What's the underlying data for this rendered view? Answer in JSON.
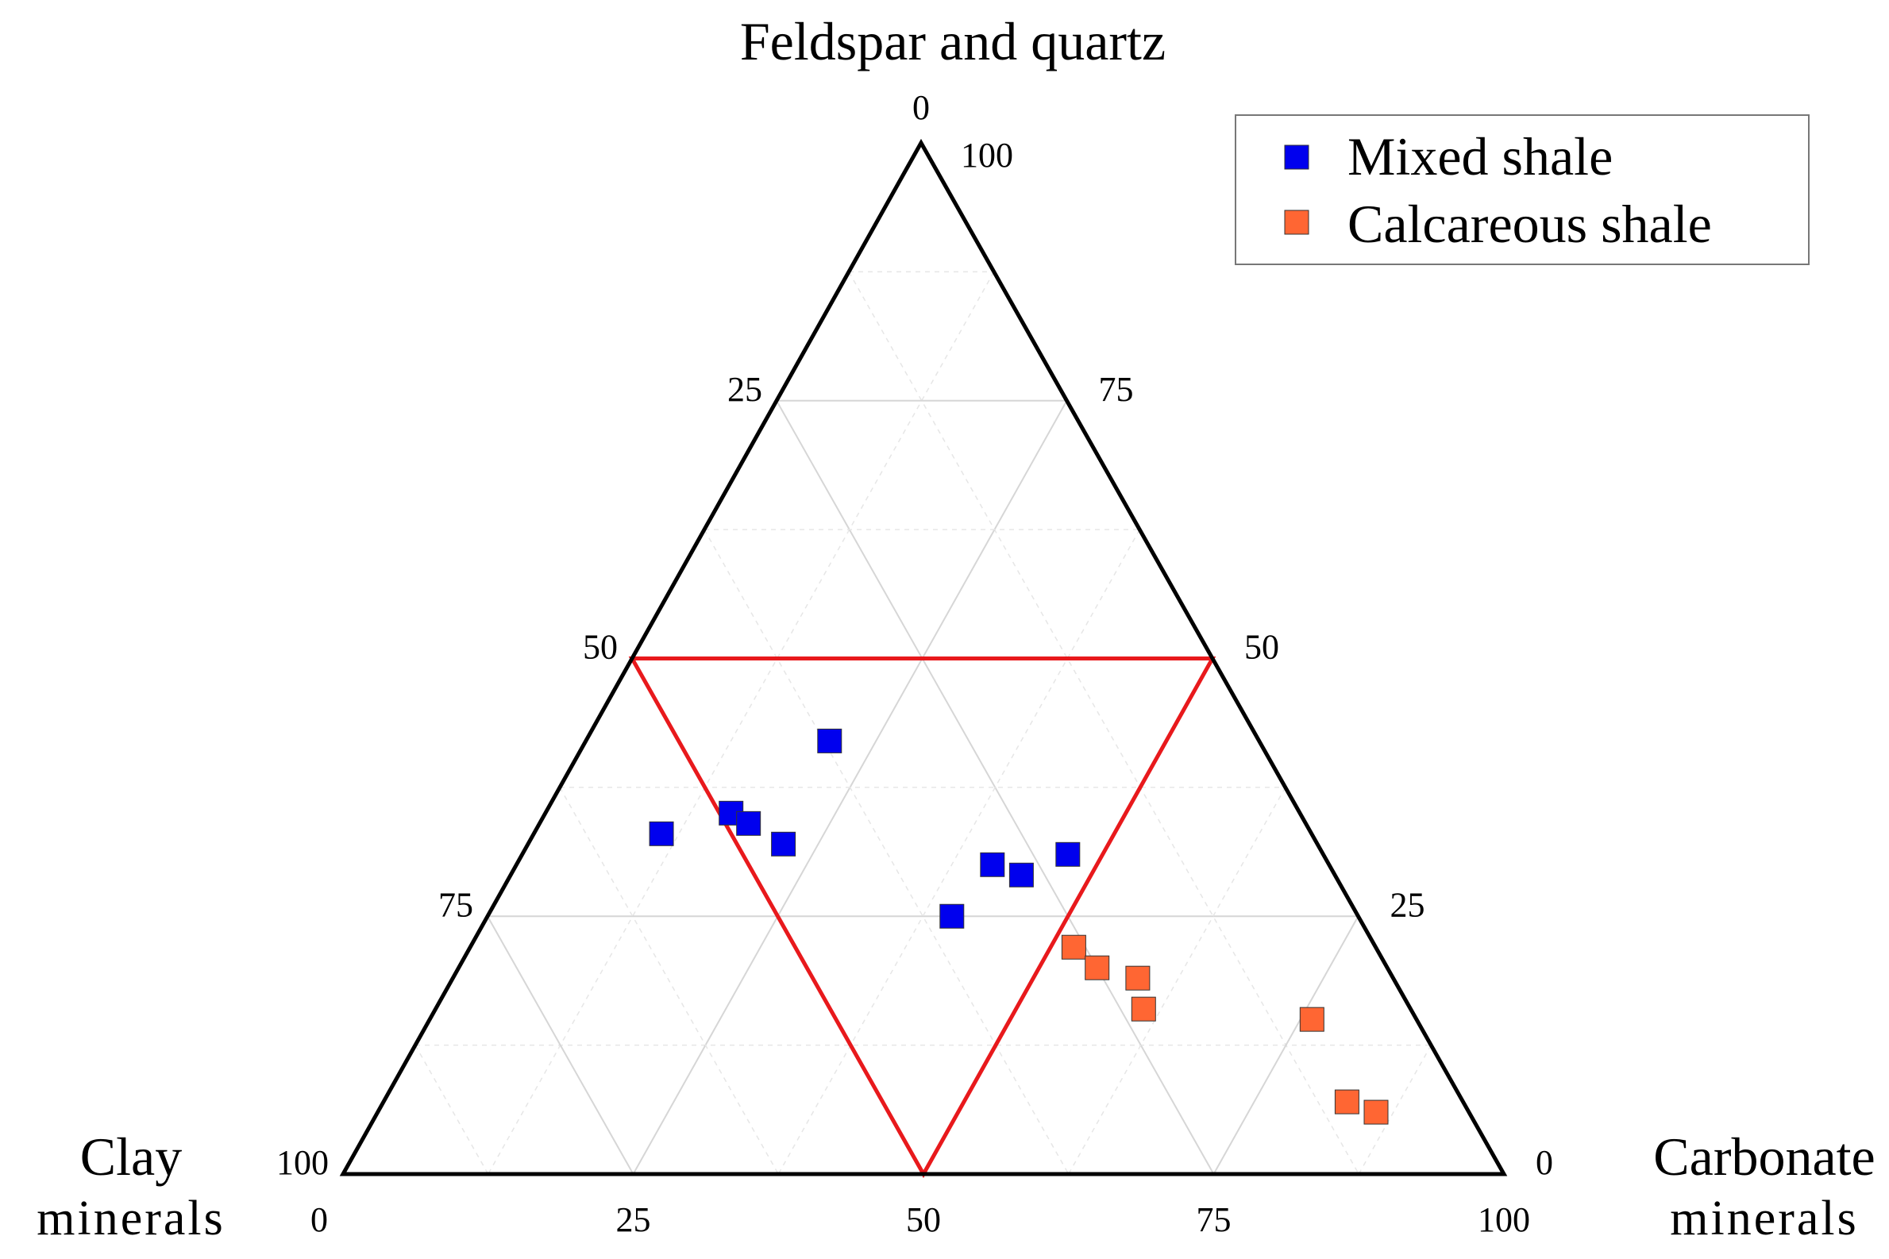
{
  "chart_data": {
    "type": "scatter",
    "subtype": "ternary",
    "axes": {
      "top": {
        "label": "Feldspar and quartz"
      },
      "left": {
        "label_line1": "Clay",
        "label_line2": "minerals"
      },
      "right": {
        "label_line1": "Carbonate",
        "label_line2": "minerals"
      }
    },
    "ticks": {
      "left_edge": [
        "0",
        "25",
        "50",
        "75",
        "100"
      ],
      "right_edge": [
        "100",
        "75",
        "50",
        "25",
        "0"
      ],
      "bottom_edge": [
        "0",
        "25",
        "50",
        "75",
        "100"
      ]
    },
    "grid": "light gray lines every 12.5%",
    "region_triangle": {
      "description": "midpoint triangle (each component <= 50%)",
      "color": "#e8191c",
      "vertices": [
        {
          "quartz_feldspar": 50,
          "clay": 50,
          "carbonate": 0
        },
        {
          "quartz_feldspar": 50,
          "clay": 0,
          "carbonate": 50
        },
        {
          "quartz_feldspar": 0,
          "clay": 50,
          "carbonate": 50
        }
      ]
    },
    "legend": {
      "placement": "top-right"
    },
    "series": [
      {
        "name": "Mixed shale",
        "color": "#0000ee",
        "marker": "square",
        "points": [
          {
            "quartz_feldspar": 42,
            "clay": 37,
            "carbonate": 21
          },
          {
            "quartz_feldspar": 33,
            "clay": 56,
            "carbonate": 11
          },
          {
            "quartz_feldspar": 35,
            "clay": 49,
            "carbonate": 16
          },
          {
            "quartz_feldspar": 34,
            "clay": 48,
            "carbonate": 18
          },
          {
            "quartz_feldspar": 32,
            "clay": 46,
            "carbonate": 22
          },
          {
            "quartz_feldspar": 30,
            "clay": 29,
            "carbonate": 41
          },
          {
            "quartz_feldspar": 29,
            "clay": 27,
            "carbonate": 44
          },
          {
            "quartz_feldspar": 31,
            "clay": 22,
            "carbonate": 47
          },
          {
            "quartz_feldspar": 25,
            "clay": 35,
            "carbonate": 40
          }
        ]
      },
      {
        "name": "Calcareous shale",
        "color": "#ff6633",
        "marker": "square",
        "points": [
          {
            "quartz_feldspar": 22,
            "clay": 26,
            "carbonate": 52
          },
          {
            "quartz_feldspar": 20,
            "clay": 25,
            "carbonate": 55
          },
          {
            "quartz_feldspar": 19,
            "clay": 22,
            "carbonate": 59
          },
          {
            "quartz_feldspar": 16,
            "clay": 23,
            "carbonate": 61
          },
          {
            "quartz_feldspar": 15,
            "clay": 9,
            "carbonate": 76
          },
          {
            "quartz_feldspar": 7,
            "clay": 10,
            "carbonate": 83
          },
          {
            "quartz_feldspar": 6,
            "clay": 8,
            "carbonate": 86
          }
        ]
      }
    ]
  }
}
